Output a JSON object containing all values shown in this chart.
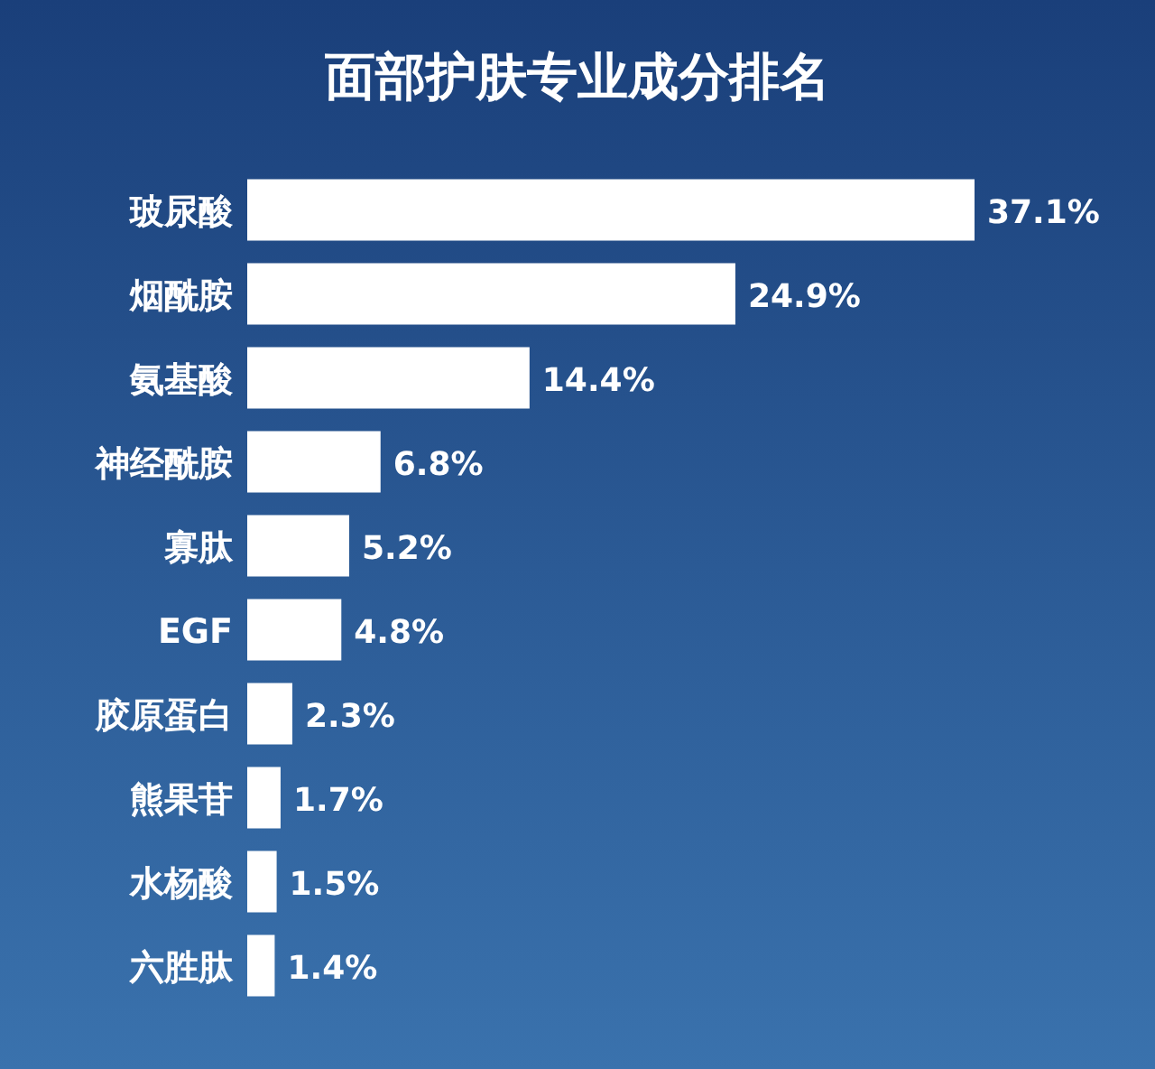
{
  "chart_data": {
    "type": "bar",
    "orientation": "horizontal",
    "title": "面部护肤专业成分排名",
    "categories": [
      "玻尿酸",
      "烟酰胺",
      "氨基酸",
      "神经酰胺",
      "寡肽",
      "EGF",
      "胶原蛋白",
      "熊果苷",
      "水杨酸",
      "六胜肽"
    ],
    "values": [
      37.1,
      24.9,
      14.4,
      6.8,
      5.2,
      4.8,
      2.3,
      1.7,
      1.5,
      1.4
    ],
    "value_labels": [
      "37.1%",
      "24.9%",
      "14.4%",
      "6.8%",
      "5.2%",
      "4.8%",
      "2.3%",
      "1.7%",
      "1.5%",
      "1.4%"
    ],
    "color": "#ffffff"
  }
}
